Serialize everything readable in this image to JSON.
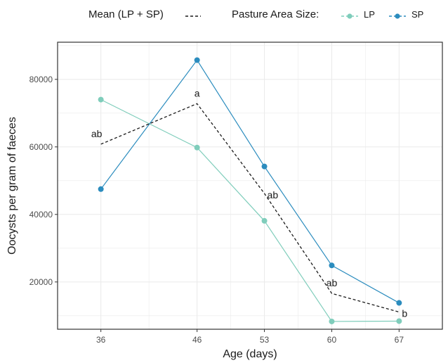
{
  "legend": {
    "mean_label": "Mean (LP + SP)",
    "group_title": "Pasture Area Size:",
    "lp_label": "LP",
    "sp_label": "SP"
  },
  "colors": {
    "lp": "#7fcdbb",
    "sp": "#2b8cbe",
    "mean": "#1a1a1a",
    "grid": "#ebebeb",
    "panel_border": "#333333"
  },
  "chart_data": {
    "type": "line",
    "xlabel": "Age (days)",
    "ylabel": "Oocysts per gram of faeces",
    "x": [
      36,
      46,
      53,
      60,
      67
    ],
    "x_tick_labels": [
      "36",
      "46",
      "53",
      "60",
      "67"
    ],
    "y_ticks": [
      20000,
      40000,
      60000,
      80000
    ],
    "y_tick_labels": [
      "20000",
      "40000",
      "60000",
      "80000"
    ],
    "ylim": [
      6000,
      91000
    ],
    "grid": true,
    "legend_position": "top",
    "series": [
      {
        "name": "LP",
        "style": "solid-points",
        "values": [
          74000,
          59800,
          38100,
          8300,
          8400
        ]
      },
      {
        "name": "SP",
        "style": "solid-points",
        "values": [
          47500,
          85700,
          54200,
          24900,
          13800
        ]
      },
      {
        "name": "Mean (LP + SP)",
        "style": "dashed",
        "values": [
          60800,
          72800,
          46200,
          16600,
          11100
        ]
      }
    ],
    "annotations": [
      {
        "x": 36,
        "y": 60800,
        "text": "ab",
        "pos": "above-left"
      },
      {
        "x": 46,
        "y": 72800,
        "text": "a",
        "pos": "above"
      },
      {
        "x": 53,
        "y": 46200,
        "text": "ab",
        "pos": "right"
      },
      {
        "x": 60,
        "y": 16600,
        "text": "ab",
        "pos": "above"
      },
      {
        "x": 67,
        "y": 11100,
        "text": "b",
        "pos": "right"
      }
    ]
  }
}
